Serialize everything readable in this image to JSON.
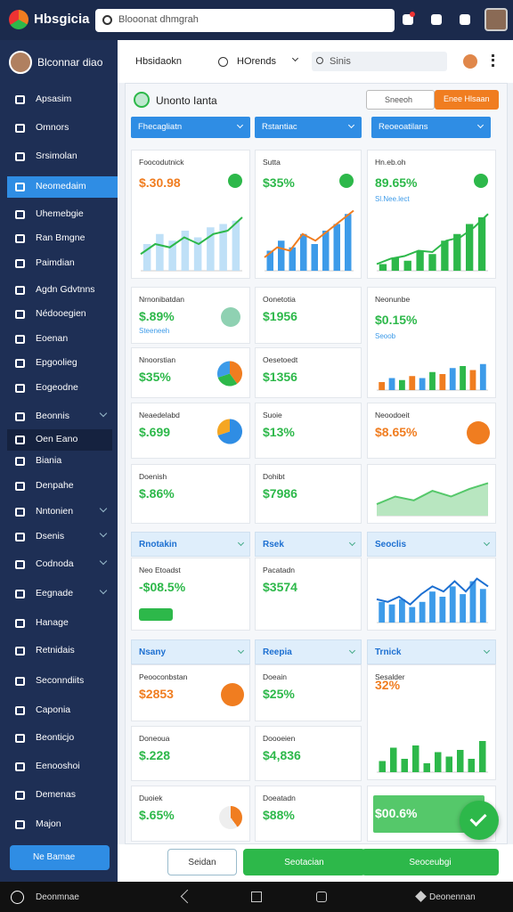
{
  "topbar": {
    "brand": "Hbsgicia",
    "search": "Blooonat dhmgrah"
  },
  "sidebar": {
    "profile": "Blconnar diao",
    "active": 3,
    "items": [
      {
        "label": "Apsasim"
      },
      {
        "label": "Omnors"
      },
      {
        "label": "Srsimolan"
      },
      {
        "label": "Neomedaim"
      },
      {
        "label": "Uhemebgie"
      },
      {
        "label": "Ran Bmgne"
      },
      {
        "label": "Paimdian"
      },
      {
        "label": "Agdn Gdvtnns"
      },
      {
        "label": "Nédooegien"
      },
      {
        "label": "Eoenan"
      },
      {
        "label": "Epgoolieg"
      },
      {
        "label": "Eogeodne"
      },
      {
        "label": "Beonnis",
        "expand": true
      },
      {
        "label": "Oen Eano"
      },
      {
        "label": "Biania"
      },
      {
        "label": "Denpahe"
      },
      {
        "label": "Nntonien",
        "expand": true
      },
      {
        "label": "Dsenis",
        "expand": true
      },
      {
        "label": "Codnoda",
        "expand": true
      },
      {
        "label": "Eegnade",
        "expand": true
      },
      {
        "label": "Hanage"
      },
      {
        "label": "Retnidais"
      },
      {
        "label": "Seconndiits"
      },
      {
        "label": "Caponia"
      },
      {
        "label": "Beonticjo"
      },
      {
        "label": "Eenooshoi"
      },
      {
        "label": "Demenas"
      },
      {
        "label": "Majon"
      }
    ],
    "button": "Ne Bamae"
  },
  "subheader": {
    "tabs": [
      "Hbsidaokn",
      "HOrends"
    ],
    "search": "Sinis"
  },
  "panel": {
    "title": "Unonto Ianta",
    "search": "Sneeoh",
    "button": "Enee Hlsaan",
    "filters": [
      "Fhecagliatn",
      "Rstantiac",
      "Reoeoatilans"
    ]
  },
  "sections": [
    [
      "Rnotakin",
      "Rsek",
      "Seoclis"
    ],
    [
      "Nsany",
      "Reepia",
      "Trnick"
    ]
  ],
  "cards": [
    {
      "label": "Foocodutnick",
      "value": "$.30.98",
      "color": "#f07d20",
      "chart": {
        "type": "barline",
        "ylim": [
          0,
          100
        ],
        "bars": [
          40,
          55,
          45,
          60,
          50,
          65,
          70,
          75
        ],
        "line": [
          25,
          40,
          35,
          50,
          40,
          55,
          60,
          80
        ],
        "barColor": "#bfe0f7",
        "lineColor": "#2db84a"
      }
    },
    {
      "label": "Sutta",
      "value": "$35%",
      "color": "#2db84a",
      "chart": {
        "type": "barline",
        "ylim": [
          0,
          100
        ],
        "bars": [
          30,
          45,
          35,
          55,
          40,
          60,
          70,
          85
        ],
        "line": [
          20,
          35,
          30,
          55,
          45,
          60,
          75,
          90
        ],
        "barColor": "#3d9be9",
        "lineColor": "#f07d20"
      }
    },
    {
      "label": "Hn.eb.oh",
      "value": "89.65%",
      "sub": "Sl.Nee.lect",
      "color": "#2db84a",
      "chart": {
        "type": "barline",
        "ylim": [
          0,
          100
        ],
        "bars": [
          10,
          20,
          15,
          30,
          25,
          45,
          55,
          70,
          80
        ],
        "line": [
          10,
          18,
          22,
          30,
          28,
          45,
          50,
          65,
          85
        ],
        "barColor": "#2db84a",
        "lineColor": "#2db84a"
      }
    },
    {
      "label": "Nrnonibatdan",
      "value": "$.89%",
      "sub": "Steeneeh",
      "color": "#2db84a"
    },
    {
      "label": "Oonetotia",
      "value": "$1956",
      "color": "#2db84a"
    },
    {
      "label": "Neonunbe",
      "value": "$0.15%",
      "sub": "Seoob",
      "color": "#2db84a",
      "chart": {
        "type": "barline",
        "ylim": [
          0,
          100
        ],
        "bars": [
          20,
          30,
          25,
          35,
          30,
          45,
          40,
          55,
          60,
          50,
          65
        ],
        "barColor": "#f07d20"
      }
    },
    {
      "label": "Nnoorstian",
      "value": "$35%",
      "color": "#2db84a",
      "chart": {
        "type": "pie",
        "values": [
          40,
          30,
          30
        ],
        "colors": [
          "#f07d20",
          "#2db84a",
          "#3d9be9"
        ]
      }
    },
    {
      "label": "Oesetoedt",
      "value": "$1356",
      "color": "#2db84a"
    },
    {
      "label": "Neaedelabd",
      "value": "$.699",
      "color": "#2db84a",
      "chart": {
        "type": "pie",
        "values": [
          70,
          30
        ],
        "colors": [
          "#2f8de4",
          "#f5a623"
        ]
      }
    },
    {
      "label": "Suoie",
      "value": "$13%",
      "color": "#2db84a"
    },
    {
      "label": "Neoodoeit",
      "value": "$8.65%",
      "color": "#f07d20"
    },
    {
      "label": "Doenish",
      "value": "$.86%",
      "color": "#2db84a"
    },
    {
      "label": "Dohibt",
      "value": "$7986",
      "color": "#2db84a"
    },
    {
      "label": null,
      "value": null,
      "chart": {
        "type": "area",
        "ylim": [
          0,
          100
        ],
        "line": [
          30,
          50,
          40,
          65,
          50,
          70,
          85
        ],
        "lineColor": "#55c86a"
      }
    },
    {
      "label": "Neo Etoadst",
      "value": "-$08.5%",
      "color": "#2db84a"
    },
    {
      "label": "Pacatadn",
      "value": "$3574",
      "color": "#2db84a"
    },
    {
      "label": null,
      "value": null,
      "chart": {
        "type": "barline",
        "ylim": [
          0,
          100
        ],
        "bars": [
          40,
          35,
          45,
          30,
          40,
          60,
          50,
          70,
          55,
          80,
          65
        ],
        "line": [
          45,
          40,
          50,
          35,
          55,
          70,
          60,
          80,
          60,
          85,
          70
        ],
        "barColor": "#3d9be9",
        "lineColor": "#1c6fd1"
      }
    },
    {
      "label": "Peooconbstan",
      "value": "$2853",
      "color": "#f07d20"
    },
    {
      "label": "Doeain",
      "value": "$25%",
      "color": "#2db84a"
    },
    {
      "label": "Sesalder",
      "value": "32%",
      "color": "#f07d20",
      "chart": {
        "type": "barline",
        "ylim": [
          0,
          100
        ],
        "bars": [
          25,
          55,
          30,
          60,
          20,
          45,
          35,
          50,
          30,
          70
        ],
        "barColor": "#2db84a"
      }
    },
    {
      "label": "Doneoua",
      "value": "$.228",
      "color": "#2db84a"
    },
    {
      "label": "Doooeien",
      "value": "$4,836",
      "color": "#2db84a"
    },
    {
      "label": "Duoiek",
      "value": "$.65%",
      "color": "#2db84a"
    },
    {
      "label": "Doeatadn",
      "value": "$88%",
      "color": "#2db84a"
    },
    {
      "label": null,
      "value": "$00.6%",
      "color": "#ffffff"
    }
  ],
  "actions": [
    "Seidan",
    "Seotacian",
    "Seoceubgi"
  ],
  "navbar": {
    "left": "Deonmnae",
    "right": "Deonennan"
  }
}
